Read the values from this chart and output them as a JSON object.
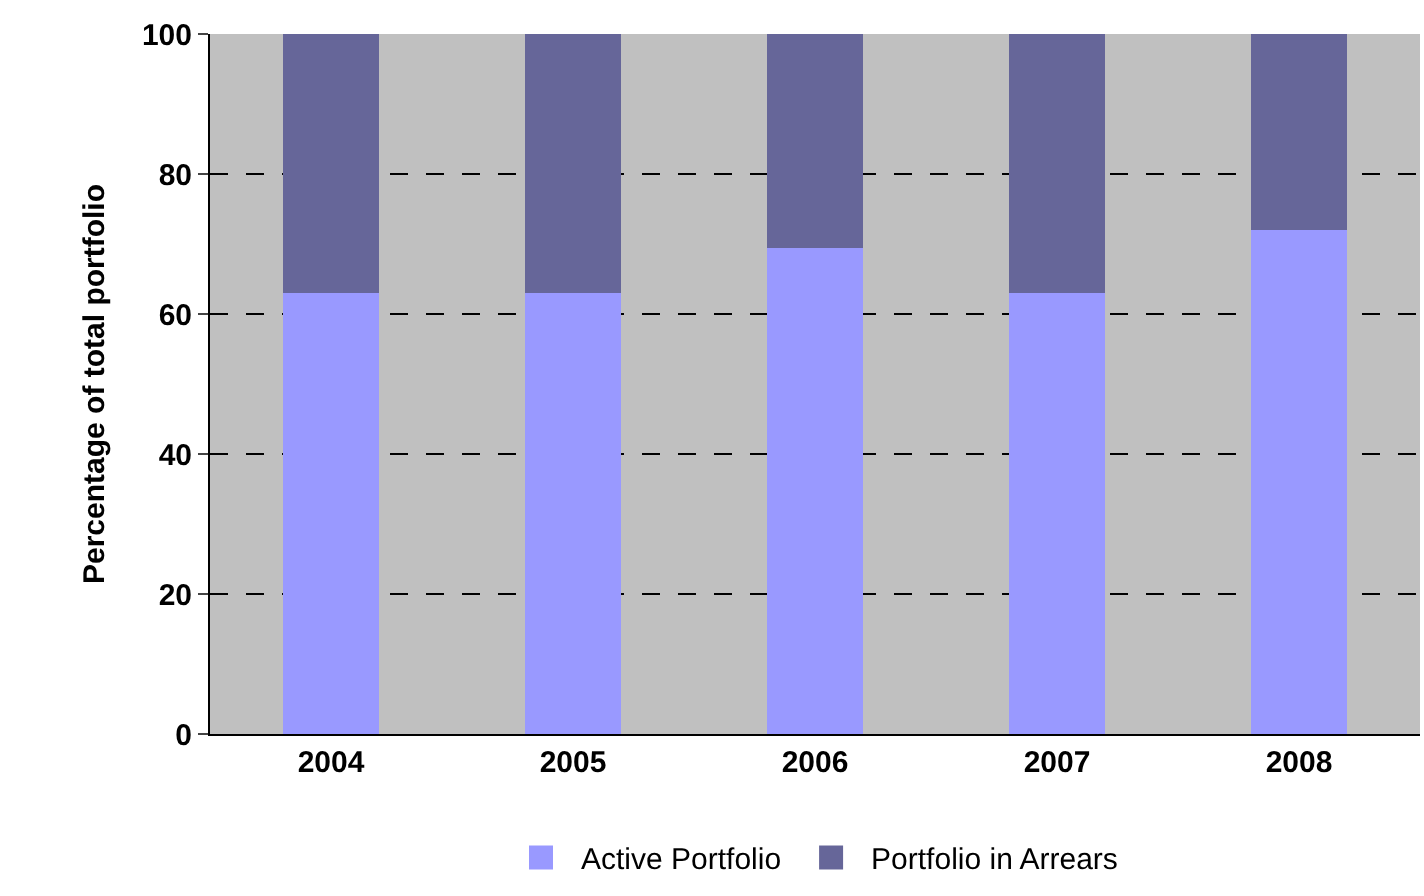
{
  "chart_data": {
    "type": "bar",
    "stacked": true,
    "ylabel": "Percentage of total portfolio",
    "categories": [
      "2004",
      "2005",
      "2006",
      "2007",
      "2008"
    ],
    "series": [
      {
        "name": "Active Portfolio",
        "color": "#9999ff",
        "values": [
          63,
          63,
          69.5,
          63,
          72
        ]
      },
      {
        "name": "Portfolio in Arrears",
        "color": "#666699",
        "values": [
          37,
          37,
          30.5,
          37,
          28
        ]
      }
    ],
    "ylim": [
      0,
      100
    ],
    "yticks": [
      0,
      20,
      40,
      60,
      80,
      100
    ],
    "grid": "y",
    "legend": "bottom"
  }
}
